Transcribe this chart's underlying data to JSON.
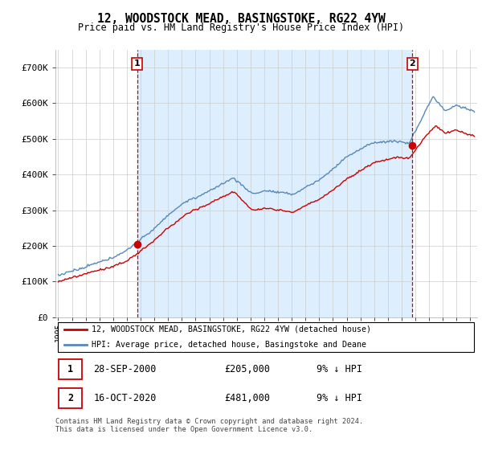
{
  "title": "12, WOODSTOCK MEAD, BASINGSTOKE, RG22 4YW",
  "subtitle": "Price paid vs. HM Land Registry's House Price Index (HPI)",
  "legend_line1": "12, WOODSTOCK MEAD, BASINGSTOKE, RG22 4YW (detached house)",
  "legend_line2": "HPI: Average price, detached house, Basingstoke and Deane",
  "annotation1_date": "28-SEP-2000",
  "annotation1_price": "£205,000",
  "annotation1_hpi": "9% ↓ HPI",
  "annotation2_date": "16-OCT-2020",
  "annotation2_price": "£481,000",
  "annotation2_hpi": "9% ↓ HPI",
  "footer": "Contains HM Land Registry data © Crown copyright and database right 2024.\nThis data is licensed under the Open Government Licence v3.0.",
  "ylabel_ticks": [
    "£0",
    "£100K",
    "£200K",
    "£300K",
    "£400K",
    "£500K",
    "£600K",
    "£700K"
  ],
  "ytick_values": [
    0,
    100000,
    200000,
    300000,
    400000,
    500000,
    600000,
    700000
  ],
  "ylim": [
    0,
    750000
  ],
  "xlim_start": 1994.8,
  "xlim_end": 2025.5,
  "line_color_red": "#cc0000",
  "line_color_blue": "#5588bb",
  "shade_color": "#ddeeff",
  "background_color": "#ffffff",
  "grid_color": "#cccccc",
  "annotation_box_color": "#cc0000",
  "purchase1_x": 2000.75,
  "purchase1_y": 205000,
  "purchase2_x": 2020.79,
  "purchase2_y": 481000
}
